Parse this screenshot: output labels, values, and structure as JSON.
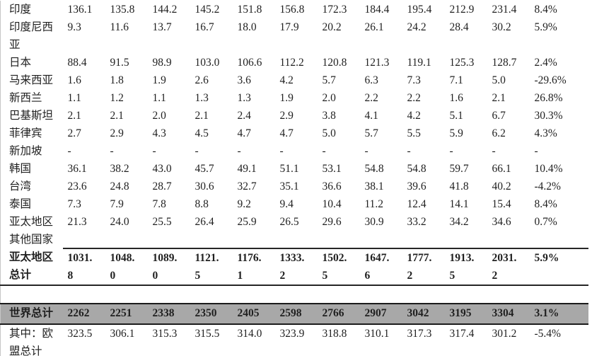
{
  "page": {
    "background_color": "#ffffff",
    "highlight_row_color": "#a8a8a8",
    "rule_color": "#262626",
    "text_color": "#1f1f1f"
  },
  "table": {
    "num_value_columns": 11,
    "rows": [
      {
        "label": "印度",
        "values": [
          "136.1",
          "135.8",
          "144.2",
          "145.2",
          "151.8",
          "156.8",
          "172.3",
          "184.4",
          "195.4",
          "212.9",
          "231.4"
        ],
        "pct": "8.4%"
      },
      {
        "label": "印度尼西\n亚",
        "values": [
          "9.3",
          "11.6",
          "13.7",
          "16.7",
          "18.0",
          "17.9",
          "20.2",
          "26.1",
          "24.2",
          "28.4",
          "30.2"
        ],
        "pct": "5.9%"
      },
      {
        "label": "日本",
        "values": [
          "88.4",
          "91.5",
          "98.9",
          "103.0",
          "106.6",
          "112.2",
          "120.8",
          "121.3",
          "119.1",
          "125.3",
          "128.7"
        ],
        "pct": "2.4%"
      },
      {
        "label": "马来西亚",
        "values": [
          "1.6",
          "1.8",
          "1.9",
          "2.6",
          "3.6",
          "4.2",
          "5.7",
          "6.3",
          "7.3",
          "7.1",
          "5.0"
        ],
        "pct": "-29.6%"
      },
      {
        "label": "新西兰",
        "values": [
          "1.1",
          "1.2",
          "1.1",
          "1.3",
          "1.3",
          "1.9",
          "2.0",
          "2.2",
          "2.2",
          "1.6",
          "2.1"
        ],
        "pct": "26.8%"
      },
      {
        "label": "巴基斯坦",
        "values": [
          "2.1",
          "2.1",
          "2.0",
          "2.1",
          "2.4",
          "2.9",
          "3.8",
          "4.1",
          "4.2",
          "5.1",
          "6.7"
        ],
        "pct": "30.3%"
      },
      {
        "label": "菲律宾",
        "values": [
          "2.7",
          "2.9",
          "4.3",
          "4.5",
          "4.7",
          "4.7",
          "5.0",
          "5.7",
          "5.5",
          "5.9",
          "6.2"
        ],
        "pct": "4.3%"
      },
      {
        "label": "新加坡",
        "values": [
          "-",
          "-",
          "-",
          "-",
          "-",
          "-",
          "-",
          "-",
          "-",
          "-",
          "-"
        ],
        "pct": "-"
      },
      {
        "label": "韩国",
        "values": [
          "36.1",
          "38.2",
          "43.0",
          "45.7",
          "49.1",
          "51.1",
          "53.1",
          "54.8",
          "54.8",
          "59.7",
          "66.1"
        ],
        "pct": "10.4%"
      },
      {
        "label": "台湾",
        "values": [
          "23.6",
          "24.8",
          "28.7",
          "30.6",
          "32.7",
          "35.1",
          "36.6",
          "38.1",
          "39.6",
          "41.8",
          "40.2"
        ],
        "pct": "-4.2%"
      },
      {
        "label": "泰国",
        "values": [
          "7.3",
          "7.9",
          "7.8",
          "8.8",
          "9.2",
          "9.4",
          "10.4",
          "11.2",
          "12.4",
          "14.1",
          "15.4"
        ],
        "pct": "8.4%"
      },
      {
        "label": "亚太地区\n其他国家",
        "values": [
          "21.3",
          "24.0",
          "25.5",
          "26.4",
          "25.9",
          "26.5",
          "29.6",
          "30.9",
          "33.2",
          "34.2",
          "34.6"
        ],
        "pct": "0.7%"
      },
      {
        "label": "亚太地区\n总计",
        "values": [
          "1031.\n8",
          "1048.\n0",
          "1089.\n0",
          "1121.\n5",
          "1176.\n1",
          "1333.\n2",
          "1502.\n5",
          "1647.\n6",
          "1777.\n2",
          "1913.\n5",
          "2031.\n2"
        ],
        "pct": "5.9%",
        "bold": true,
        "rule_top": "data",
        "rule_bottom": "full"
      },
      {
        "type": "spacer"
      },
      {
        "label": "世界总计",
        "values": [
          "2262",
          "2251",
          "2338",
          "2350",
          "2405",
          "2598",
          "2766",
          "2907",
          "3042",
          "3195",
          "3304"
        ],
        "pct": "3.1%",
        "bold": true,
        "highlight": true
      },
      {
        "label": "其中：欧\n盟总计",
        "values": [
          "323.5",
          "306.1",
          "315.3",
          "315.5",
          "314.0",
          "323.9",
          "318.8",
          "310.1",
          "317.3",
          "317.4",
          "301.2"
        ],
        "pct": "-5.4%"
      }
    ]
  }
}
